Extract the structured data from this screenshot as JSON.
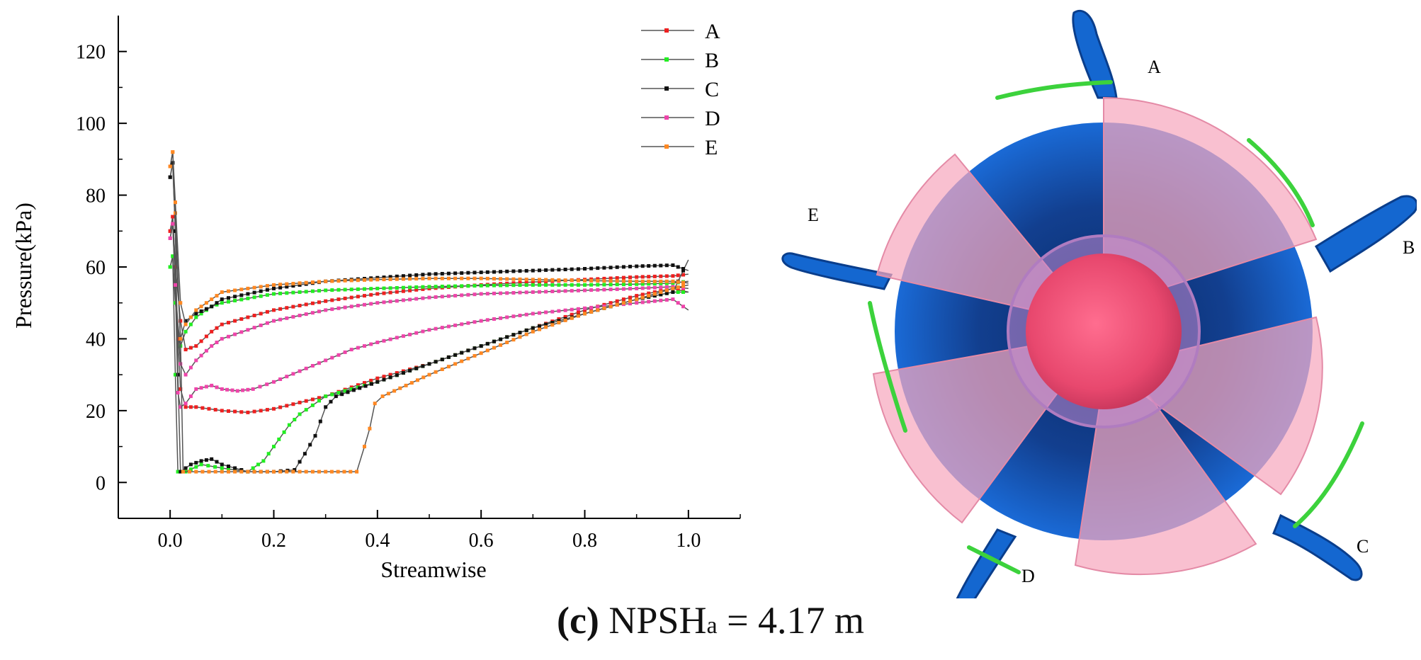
{
  "chart_data": {
    "type": "line",
    "title": "",
    "xlabel": "Streamwise",
    "ylabel": "Pressure(kPa)",
    "xlim": [
      -0.1,
      1.1
    ],
    "ylim": [
      -10,
      130
    ],
    "xticks": [
      0.0,
      0.2,
      0.4,
      0.6,
      0.8,
      1.0
    ],
    "xtick_labels": [
      "0.0",
      "0.2",
      "0.4",
      "0.6",
      "0.8",
      "1.0"
    ],
    "yticks": [
      0,
      20,
      40,
      60,
      80,
      100,
      120
    ],
    "ytick_labels": [
      "0",
      "20",
      "40",
      "60",
      "80",
      "100",
      "120"
    ],
    "legend_position": "top-right",
    "series": [
      {
        "name": "A",
        "color": "#ee2020",
        "suction": [
          [
            0.0,
            70
          ],
          [
            0.005,
            74
          ],
          [
            0.01,
            60
          ],
          [
            0.015,
            40
          ],
          [
            0.02,
            26
          ],
          [
            0.03,
            21
          ],
          [
            0.05,
            21
          ],
          [
            0.1,
            20
          ],
          [
            0.15,
            19.5
          ],
          [
            0.2,
            20.5
          ],
          [
            0.3,
            24
          ],
          [
            0.4,
            29
          ],
          [
            0.5,
            33
          ],
          [
            0.6,
            38
          ],
          [
            0.7,
            43
          ],
          [
            0.8,
            48
          ],
          [
            0.9,
            52
          ],
          [
            0.97,
            54
          ],
          [
            1.0,
            53
          ]
        ],
        "pressure": [
          [
            0.0,
            70
          ],
          [
            0.005,
            74
          ],
          [
            0.01,
            60
          ],
          [
            0.02,
            45
          ],
          [
            0.03,
            37
          ],
          [
            0.05,
            38
          ],
          [
            0.08,
            42
          ],
          [
            0.1,
            44
          ],
          [
            0.2,
            48
          ],
          [
            0.3,
            50.5
          ],
          [
            0.4,
            52.5
          ],
          [
            0.5,
            54
          ],
          [
            0.6,
            55
          ],
          [
            0.7,
            55.8
          ],
          [
            0.8,
            56.5
          ],
          [
            0.9,
            57.2
          ],
          [
            0.97,
            57.5
          ],
          [
            1.0,
            58
          ]
        ]
      },
      {
        "name": "B",
        "color": "#22ee22",
        "suction": [
          [
            0.0,
            60
          ],
          [
            0.005,
            63
          ],
          [
            0.01,
            30
          ],
          [
            0.015,
            3
          ],
          [
            0.03,
            3
          ],
          [
            0.06,
            5
          ],
          [
            0.1,
            4
          ],
          [
            0.15,
            3
          ],
          [
            0.18,
            6
          ],
          [
            0.2,
            10
          ],
          [
            0.23,
            16
          ],
          [
            0.25,
            19
          ],
          [
            0.3,
            24
          ],
          [
            0.4,
            28
          ],
          [
            0.5,
            33
          ],
          [
            0.6,
            38
          ],
          [
            0.7,
            43
          ],
          [
            0.8,
            47
          ],
          [
            0.9,
            51
          ],
          [
            0.97,
            53
          ],
          [
            1.0,
            53
          ]
        ],
        "pressure": [
          [
            0.0,
            60
          ],
          [
            0.005,
            63
          ],
          [
            0.01,
            50
          ],
          [
            0.02,
            38
          ],
          [
            0.03,
            42
          ],
          [
            0.05,
            46
          ],
          [
            0.08,
            49
          ],
          [
            0.1,
            50
          ],
          [
            0.2,
            52.5
          ],
          [
            0.3,
            53.5
          ],
          [
            0.4,
            54
          ],
          [
            0.5,
            54.5
          ],
          [
            0.6,
            54.8
          ],
          [
            0.7,
            55
          ],
          [
            0.8,
            55
          ],
          [
            0.9,
            55.2
          ],
          [
            0.97,
            55.5
          ],
          [
            1.0,
            56
          ]
        ]
      },
      {
        "name": "C",
        "color": "#111111",
        "suction": [
          [
            0.0,
            85
          ],
          [
            0.005,
            89
          ],
          [
            0.01,
            70
          ],
          [
            0.015,
            30
          ],
          [
            0.02,
            3
          ],
          [
            0.04,
            5
          ],
          [
            0.06,
            6
          ],
          [
            0.08,
            6.5
          ],
          [
            0.1,
            5
          ],
          [
            0.15,
            3
          ],
          [
            0.2,
            3
          ],
          [
            0.24,
            3.5
          ],
          [
            0.26,
            8
          ],
          [
            0.28,
            13
          ],
          [
            0.3,
            21
          ],
          [
            0.32,
            24
          ],
          [
            0.4,
            28
          ],
          [
            0.5,
            33
          ],
          [
            0.6,
            38
          ],
          [
            0.7,
            43
          ],
          [
            0.8,
            47
          ],
          [
            0.9,
            51
          ],
          [
            0.97,
            53
          ],
          [
            1.0,
            62
          ]
        ],
        "pressure": [
          [
            0.0,
            85
          ],
          [
            0.005,
            89
          ],
          [
            0.01,
            70
          ],
          [
            0.02,
            40
          ],
          [
            0.03,
            45
          ],
          [
            0.05,
            47
          ],
          [
            0.08,
            49
          ],
          [
            0.1,
            51
          ],
          [
            0.2,
            54
          ],
          [
            0.3,
            56
          ],
          [
            0.4,
            57
          ],
          [
            0.5,
            58
          ],
          [
            0.6,
            58.5
          ],
          [
            0.7,
            59
          ],
          [
            0.8,
            59.5
          ],
          [
            0.9,
            60.2
          ],
          [
            0.97,
            60.5
          ],
          [
            1.0,
            59
          ]
        ]
      },
      {
        "name": "D",
        "color": "#ee44aa",
        "suction": [
          [
            0.0,
            68
          ],
          [
            0.005,
            72
          ],
          [
            0.01,
            55
          ],
          [
            0.015,
            25
          ],
          [
            0.02,
            21
          ],
          [
            0.03,
            22
          ],
          [
            0.05,
            26
          ],
          [
            0.08,
            27
          ],
          [
            0.1,
            26
          ],
          [
            0.13,
            25.5
          ],
          [
            0.16,
            26
          ],
          [
            0.2,
            28
          ],
          [
            0.25,
            31
          ],
          [
            0.3,
            34
          ],
          [
            0.35,
            37
          ],
          [
            0.4,
            39
          ],
          [
            0.5,
            42.5
          ],
          [
            0.6,
            45
          ],
          [
            0.7,
            47
          ],
          [
            0.8,
            48.5
          ],
          [
            0.9,
            50
          ],
          [
            0.97,
            51
          ],
          [
            1.0,
            48
          ]
        ],
        "pressure": [
          [
            0.0,
            68
          ],
          [
            0.005,
            72
          ],
          [
            0.01,
            55
          ],
          [
            0.02,
            33
          ],
          [
            0.03,
            30
          ],
          [
            0.05,
            34
          ],
          [
            0.08,
            38
          ],
          [
            0.1,
            40
          ],
          [
            0.2,
            45
          ],
          [
            0.3,
            48
          ],
          [
            0.4,
            50
          ],
          [
            0.5,
            51.5
          ],
          [
            0.6,
            52.5
          ],
          [
            0.7,
            53
          ],
          [
            0.8,
            53.5
          ],
          [
            0.9,
            54
          ],
          [
            0.97,
            54.5
          ],
          [
            1.0,
            54
          ]
        ]
      },
      {
        "name": "E",
        "color": "#ff8822",
        "suction": [
          [
            0.0,
            88
          ],
          [
            0.005,
            92
          ],
          [
            0.01,
            75
          ],
          [
            0.02,
            40
          ],
          [
            0.025,
            3
          ],
          [
            0.05,
            3
          ],
          [
            0.1,
            3
          ],
          [
            0.2,
            3
          ],
          [
            0.3,
            3
          ],
          [
            0.36,
            3
          ],
          [
            0.375,
            10
          ],
          [
            0.385,
            15
          ],
          [
            0.395,
            22
          ],
          [
            0.41,
            24
          ],
          [
            0.5,
            30
          ],
          [
            0.6,
            36
          ],
          [
            0.7,
            42
          ],
          [
            0.8,
            47
          ],
          [
            0.9,
            51
          ],
          [
            0.97,
            54
          ],
          [
            1.0,
            55
          ]
        ],
        "pressure": [
          [
            0.0,
            88
          ],
          [
            0.005,
            92
          ],
          [
            0.01,
            78
          ],
          [
            0.02,
            50
          ],
          [
            0.03,
            44
          ],
          [
            0.05,
            48
          ],
          [
            0.08,
            51
          ],
          [
            0.1,
            53
          ],
          [
            0.2,
            55
          ],
          [
            0.3,
            56
          ],
          [
            0.4,
            56.5
          ],
          [
            0.5,
            56.8
          ],
          [
            0.6,
            56.8
          ],
          [
            0.7,
            56.5
          ],
          [
            0.8,
            56.2
          ],
          [
            0.9,
            56
          ],
          [
            0.97,
            56
          ],
          [
            1.0,
            55.5
          ]
        ]
      }
    ]
  },
  "impeller": {
    "blade_labels": [
      "A",
      "B",
      "C",
      "D",
      "E"
    ],
    "colors": {
      "hub_blue": "#1467d0",
      "hub_dark": "#0a2a66",
      "blade_pink": "#f6a8be",
      "nose": "#e8486e",
      "cavity_green": "#3cd23c"
    }
  },
  "caption": {
    "prefix": "(c)",
    "main": " NPSH",
    "subscript": "a",
    "suffix": " = 4.17 m"
  }
}
